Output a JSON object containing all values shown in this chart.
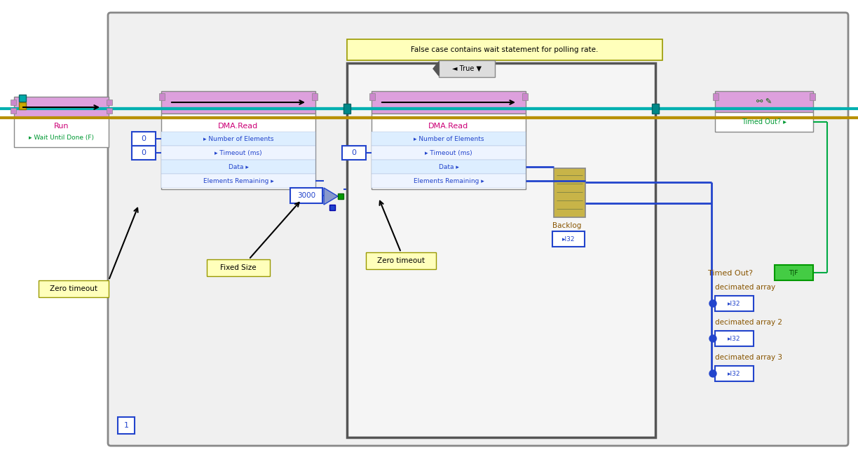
{
  "bg_white": "#ffffff",
  "outer_border": "#aaaaaa",
  "frame_bg": "#f8f8f8",
  "frame_border": "#777777",
  "pink": "#e8a0e8",
  "pink_dark": "#d888d8",
  "white": "#ffffff",
  "blue": "#2255cc",
  "blue_wire": "#2255cc",
  "teal_wire": "#00b8b8",
  "gold_wire": "#c8a000",
  "green_wire": "#00aa44",
  "label_bg": "#ffffbb",
  "label_border": "#999900",
  "i32_bg": "#ffffff",
  "i32_border": "#2255cc",
  "field_bg": "#ddeeff",
  "field_border": "#aaaacc",
  "unbundle_bg": "#c8b448",
  "case_label": "False case contains wait statement for polling rate.",
  "true_text": "◄ True ▼",
  "run_title": "Run",
  "run_sub": "▸ Wait Until Done (F)",
  "dma_title": "DMA.Read",
  "fields": [
    "Number of Elements",
    "Timeout (ms)",
    "Data",
    "Elements Remaining"
  ],
  "timedout_title": "Timed Out?",
  "zero_timeout": "Zero timeout",
  "fixed_size": "Fixed Size",
  "val_3000": "3000",
  "val_0": "0",
  "backlog": "Backlog",
  "timed_out_lbl": "Timed Out?",
  "dec1": "decimated array",
  "dec2": "decimated array 2",
  "dec3": "decimated array 3",
  "i32_txt": "▸I32"
}
